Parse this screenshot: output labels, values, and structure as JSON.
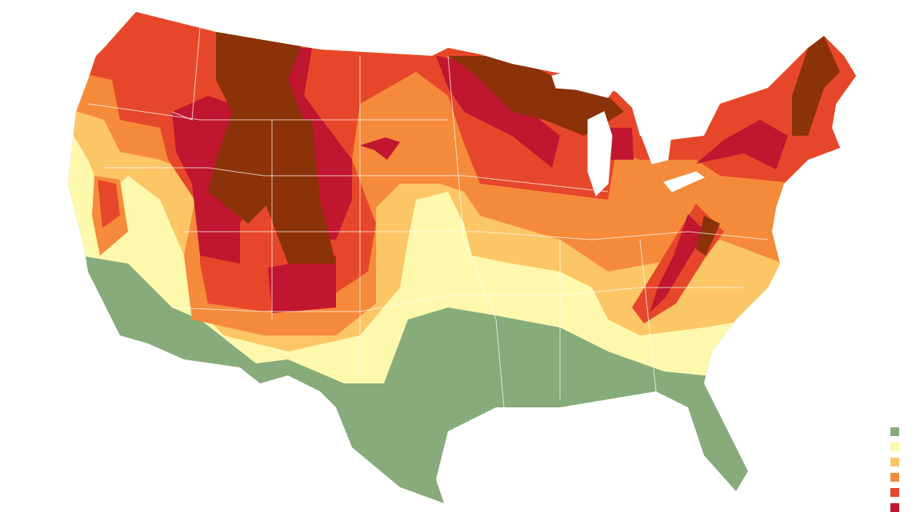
{
  "legend_colors": [
    "#87ab7b",
    "#fdf8ac",
    "#fcc566",
    "#f68a3b",
    "#e6472a",
    "#c01630"
  ],
  "peak_color": "#8c3209"
}
